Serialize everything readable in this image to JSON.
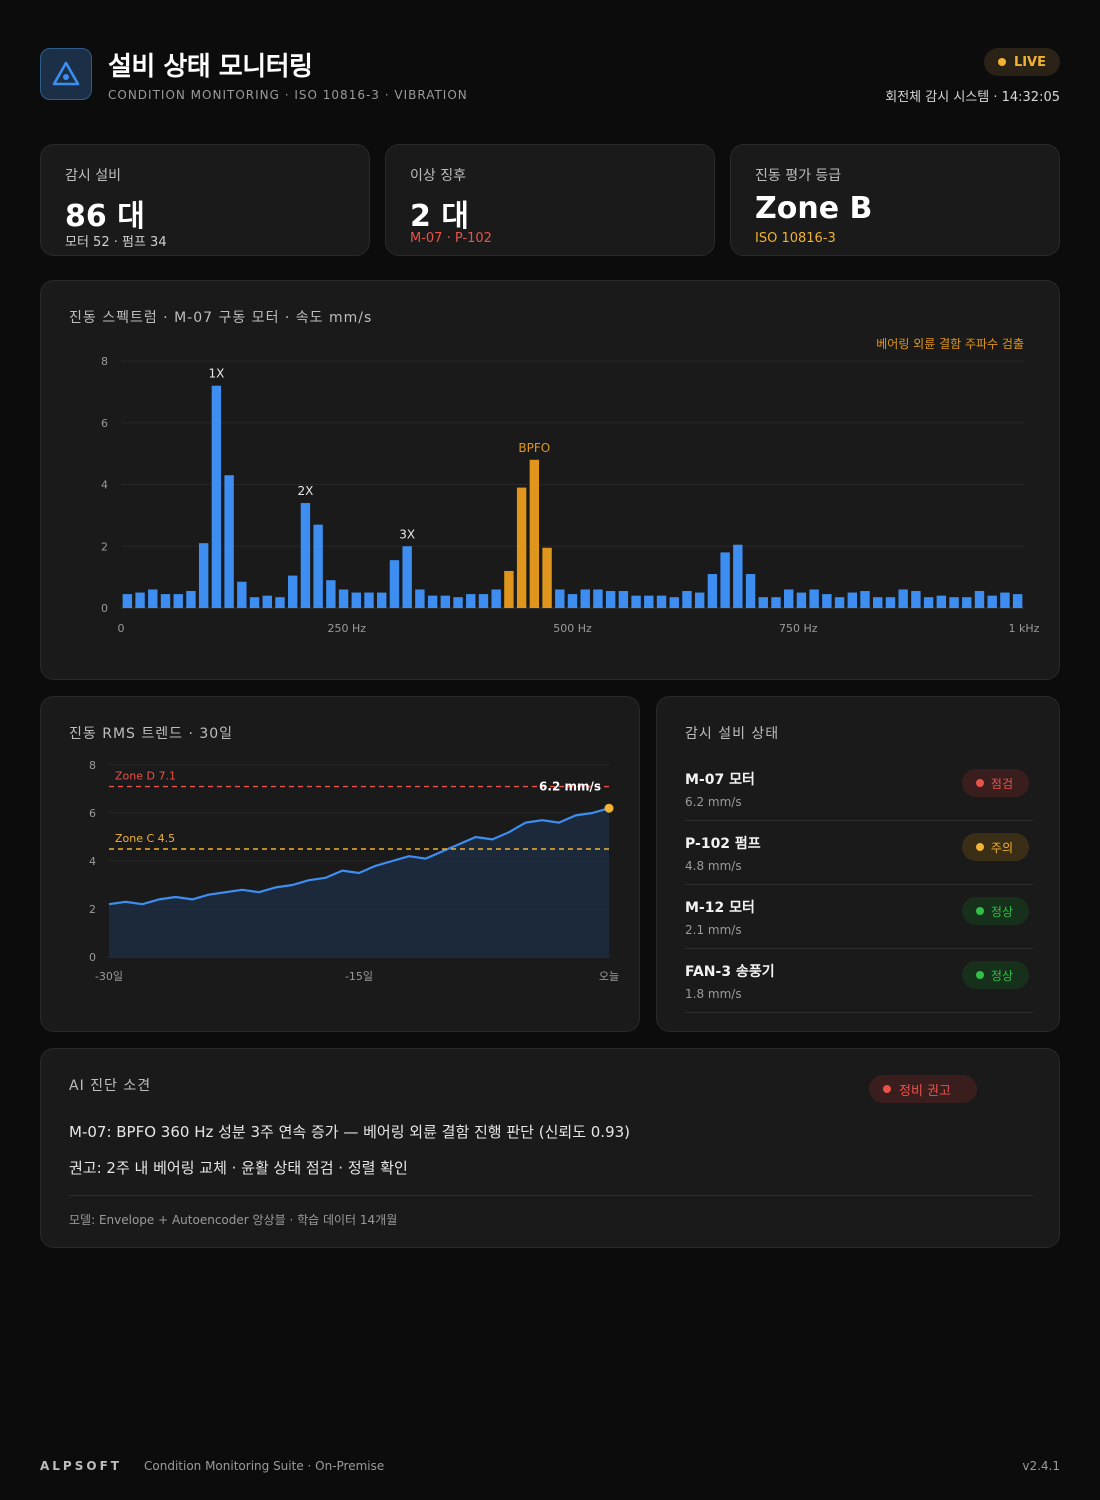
{
  "header": {
    "title": "설비 상태 모니터링",
    "subtitle": "CONDITION MONITORING · ISO 10816-3 · VIBRATION",
    "live_label": "LIVE",
    "system_time": "회전체 감시 시스템 · 14:32:05"
  },
  "kpis": [
    {
      "label": "감시 설비",
      "value": "86 대",
      "sub": "모터 52 · 펌프 34",
      "sub_color": "#cfcfcf"
    },
    {
      "label": "이상 징후",
      "value": "2 대",
      "sub": "M-07 · P-102",
      "sub_color": "#e8524a"
    },
    {
      "label": "진동 평가 등급",
      "value": "Zone B",
      "sub": "ISO 10816-3",
      "sub_color": "#f2b233"
    }
  ],
  "spectrum": {
    "title": "진동 스펙트럼 · M-07 구동 모터 · 속도 mm/s",
    "detection_note": "베어링 외륜 결함 주파수 검출"
  },
  "trend": {
    "title": "진동 RMS 트렌드 · 30일"
  },
  "status_panel": {
    "title": "감시 설비 상태",
    "items": [
      {
        "name": "M-07 모터",
        "value": "6.2 mm/s",
        "status": "점검",
        "level": "red"
      },
      {
        "name": "P-102 펌프",
        "value": "4.8 mm/s",
        "status": "주의",
        "level": "amber"
      },
      {
        "name": "M-12 모터",
        "value": "2.1 mm/s",
        "status": "정상",
        "level": "green"
      },
      {
        "name": "FAN-3 송풍기",
        "value": "1.8 mm/s",
        "status": "정상",
        "level": "green"
      }
    ]
  },
  "ai": {
    "title": "AI 진단 소견",
    "badge": "정비 권고",
    "line1": "M-07: BPFO 360 Hz 성분 3주 연속 증가 — 베어링 외륜 결함 진행 판단 (신뢰도 0.93)",
    "line2": "권고: 2주 내 베어링 교체 · 윤활 상태 점검 · 정렬 확인",
    "model": "모델: Envelope + Autoencoder 앙상블 · 학습 데이터 14개월"
  },
  "footer": {
    "brand": "ALPSOFT",
    "desc": "Condition Monitoring Suite · On-Premise",
    "version": "v2.4.1"
  },
  "colors": {
    "accent_blue": "#3d8ef0",
    "amber": "#e0961c",
    "red": "#e8524a",
    "green": "#2fbf4a"
  },
  "chart_data": [
    {
      "type": "bar",
      "title": "",
      "xlabel": "",
      "ylabel": "",
      "x_unit": "Hz",
      "xlim": [
        0,
        1000
      ],
      "ylim": [
        0,
        8
      ],
      "y_ticks": [
        0,
        2,
        4,
        6,
        8
      ],
      "x_ticks": [
        {
          "value": 0,
          "label": "0"
        },
        {
          "value": 250,
          "label": "250 Hz"
        },
        {
          "value": 500,
          "label": "500 Hz"
        },
        {
          "value": 750,
          "label": "750 Hz"
        },
        {
          "value": 1000,
          "label": "1 kHz"
        }
      ],
      "grid": true,
      "values": [
        0.45,
        0.5,
        0.6,
        0.45,
        0.45,
        0.55,
        2.1,
        7.2,
        4.3,
        0.85,
        0.35,
        0.4,
        0.35,
        1.05,
        3.4,
        2.7,
        0.9,
        0.6,
        0.5,
        0.5,
        0.5,
        1.55,
        2.0,
        0.6,
        0.4,
        0.4,
        0.35,
        0.45,
        0.45,
        0.6,
        1.2,
        3.9,
        4.8,
        1.95,
        0.6,
        0.45,
        0.6,
        0.6,
        0.55,
        0.55,
        0.4,
        0.4,
        0.4,
        0.35,
        0.55,
        0.5,
        1.1,
        1.8,
        2.05,
        1.1,
        0.35,
        0.35,
        0.6,
        0.5,
        0.6,
        0.45,
        0.35,
        0.5,
        0.55,
        0.35,
        0.35,
        0.6,
        0.55,
        0.35,
        0.4,
        0.35,
        0.35,
        0.55,
        0.4,
        0.5,
        0.45
      ],
      "highlight_indices": [
        30,
        31,
        32,
        33
      ],
      "peak_labels": [
        {
          "index": 7,
          "label": "1X"
        },
        {
          "index": 14,
          "label": "2X"
        },
        {
          "index": 22,
          "label": "3X"
        },
        {
          "index": 32,
          "label": "BPFO"
        }
      ]
    },
    {
      "type": "area",
      "title": "",
      "xlabel": "",
      "ylabel": "",
      "xlim": [
        -30,
        0
      ],
      "ylim": [
        0,
        8
      ],
      "y_ticks": [
        0,
        2,
        4,
        6,
        8
      ],
      "x_ticks": [
        {
          "value": -30,
          "label": "-30일"
        },
        {
          "value": -15,
          "label": "-15일"
        },
        {
          "value": 0,
          "label": "오늘"
        }
      ],
      "grid": true,
      "x": [
        -30,
        -29,
        -28,
        -27,
        -26,
        -25,
        -24,
        -23,
        -22,
        -21,
        -20,
        -19,
        -18,
        -17,
        -16,
        -15,
        -14,
        -13,
        -12,
        -11,
        -10,
        -9,
        -8,
        -7,
        -6,
        -5,
        -4,
        -3,
        -2,
        -1,
        0
      ],
      "values": [
        2.2,
        2.3,
        2.2,
        2.4,
        2.5,
        2.4,
        2.6,
        2.7,
        2.8,
        2.7,
        2.9,
        3.0,
        3.2,
        3.3,
        3.6,
        3.5,
        3.8,
        4.0,
        4.2,
        4.1,
        4.4,
        4.7,
        5.0,
        4.9,
        5.2,
        5.6,
        5.7,
        5.6,
        5.9,
        6.0,
        6.2
      ],
      "thresholds": [
        {
          "label": "Zone D 7.1",
          "value": 7.1,
          "color": "#e8524a"
        },
        {
          "label": "Zone C 4.5",
          "value": 4.5,
          "color": "#f2b233"
        }
      ],
      "end_label": "6.2 mm/s"
    }
  ]
}
